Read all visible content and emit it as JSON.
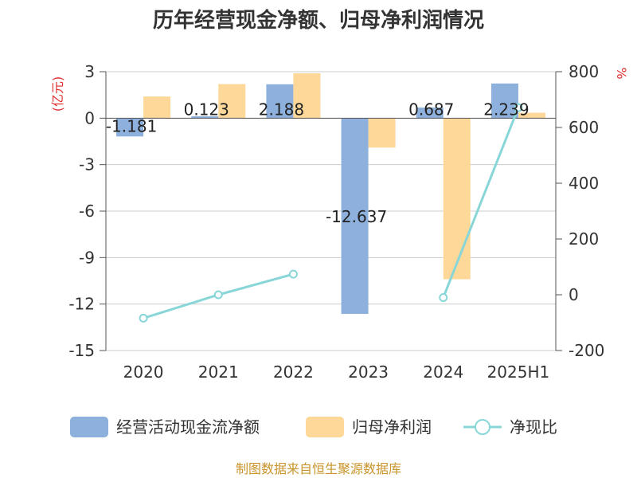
{
  "chart_data": {
    "type": "bar",
    "title": "历年经营现金净额、归母净利润情况",
    "categories": [
      "2020",
      "2021",
      "2022",
      "2023",
      "2024",
      "2025H1"
    ],
    "left_axis_unit": "(亿元)",
    "right_axis_unit": "%",
    "ylim_left": [
      -15,
      3
    ],
    "yticks_left": [
      "3",
      "0",
      "-3",
      "-6",
      "-9",
      "-12",
      "-15"
    ],
    "ylim_right": [
      -200,
      800
    ],
    "yticks_right": [
      "800",
      "600",
      "400",
      "200",
      "0",
      "-200"
    ],
    "series": [
      {
        "name": "经营活动现金流净额",
        "type": "bar",
        "axis": "left",
        "color": "#8eb0dc",
        "values": [
          -1.181,
          0.123,
          2.188,
          -12.637,
          0.687,
          2.239
        ],
        "labels": [
          "-1.181",
          "0.123",
          "2.188",
          "-12.637",
          "0.687",
          "2.239"
        ]
      },
      {
        "name": "归母净利润",
        "type": "bar",
        "axis": "left",
        "color": "#fdd899",
        "values": [
          1.4,
          2.2,
          2.9,
          -1.9,
          -10.4,
          0.35
        ]
      },
      {
        "name": "净现比",
        "type": "line",
        "axis": "right",
        "color": "#88d6d8",
        "values": [
          -84,
          0,
          74,
          null,
          -10,
          671
        ]
      }
    ],
    "grid": true,
    "legend": "bottom",
    "source": "制图数据来自恒生聚源数据库"
  }
}
